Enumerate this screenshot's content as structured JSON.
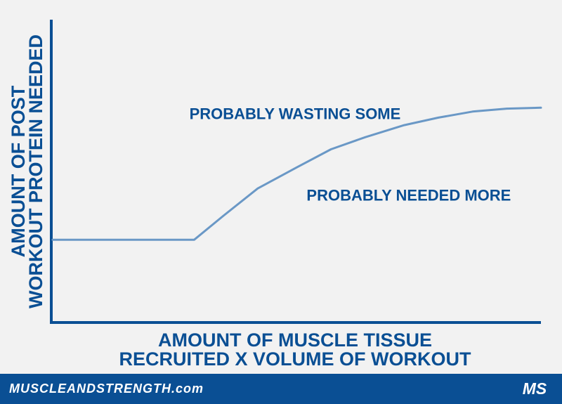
{
  "chart_data": {
    "type": "line",
    "title": "",
    "xlabel": [
      "AMOUNT OF MUSCLE TISSUE",
      "RECRUITED X VOLUME OF WORKOUT"
    ],
    "ylabel": [
      "AMOUNT OF POST",
      "WORKOUT PROTEIN NEEDED"
    ],
    "xlim": [
      0,
      100
    ],
    "ylim": [
      0,
      100
    ],
    "grid": false,
    "legend": "none",
    "tick_labels": false,
    "series": [
      {
        "x": [
          0,
          29,
          35,
          42,
          50,
          57,
          64,
          72,
          79,
          86,
          93,
          100
        ],
        "y": [
          27,
          27,
          35,
          44,
          51,
          57,
          61,
          65,
          67.5,
          69.5,
          70.5,
          70.8
        ]
      }
    ],
    "annotations": [
      {
        "text": "PROBABLY WASTING SOME",
        "x": 28,
        "y": 67
      },
      {
        "text": "PROBABLY NEEDED MORE",
        "x": 52,
        "y": 40
      }
    ],
    "colors": {
      "axis": "#0a4f94",
      "text": "#0a4f94",
      "line": "#6a98c6",
      "background": "#f2f2f2"
    }
  },
  "footer": {
    "site": "MUSCLEANDSTRENGTH.com",
    "logo_text": "MS",
    "logo_icon": "muscleandstrength-logo-icon",
    "background": "#0a4f94"
  }
}
